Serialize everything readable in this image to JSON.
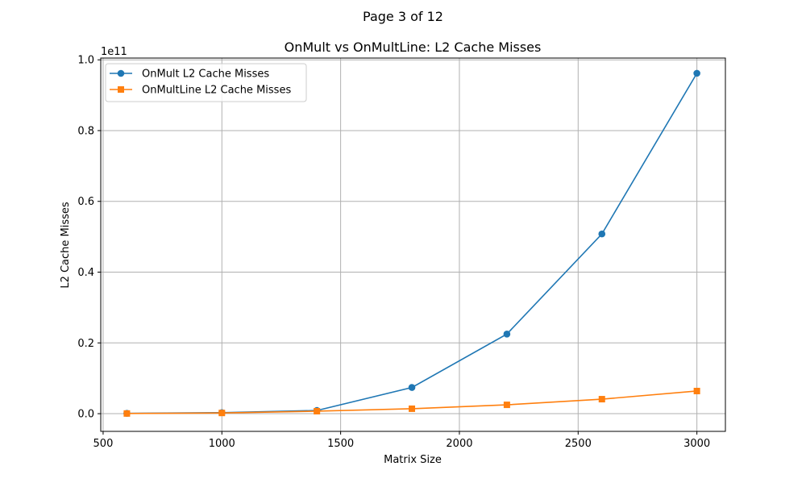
{
  "page": {
    "label": "Page 3 of 12"
  },
  "chart_data": {
    "type": "line",
    "title": "OnMult vs OnMultLine: L2 Cache Misses",
    "xlabel": "Matrix Size",
    "ylabel": "L2 Cache Misses",
    "y_offset_label": "1e11",
    "x": [
      600,
      1000,
      1400,
      1800,
      2200,
      2600,
      3000
    ],
    "xlim": [
      490,
      3120
    ],
    "ylim": [
      -0.05,
      1.005
    ],
    "x_ticks": [
      500,
      1000,
      1500,
      2000,
      2500,
      3000
    ],
    "x_tick_labels": [
      "500",
      "1000",
      "1500",
      "2000",
      "2500",
      "3000"
    ],
    "y_ticks": [
      0.0,
      0.2,
      0.4,
      0.6,
      0.8,
      1.0
    ],
    "y_tick_labels": [
      "0.0",
      "0.2",
      "0.4",
      "0.6",
      "0.8",
      "1.0"
    ],
    "grid": true,
    "legend_position": "upper-left",
    "series": [
      {
        "name": "OnMult L2 Cache Misses",
        "color": "#1f77b4",
        "marker": "circle",
        "values": [
          0.001,
          0.003,
          0.009,
          0.074,
          0.225,
          0.508,
          0.962
        ]
      },
      {
        "name": "OnMultLine L2 Cache Misses",
        "color": "#ff7f0e",
        "marker": "square",
        "values": [
          0.0005,
          0.002,
          0.007,
          0.014,
          0.025,
          0.041,
          0.064
        ]
      }
    ]
  }
}
